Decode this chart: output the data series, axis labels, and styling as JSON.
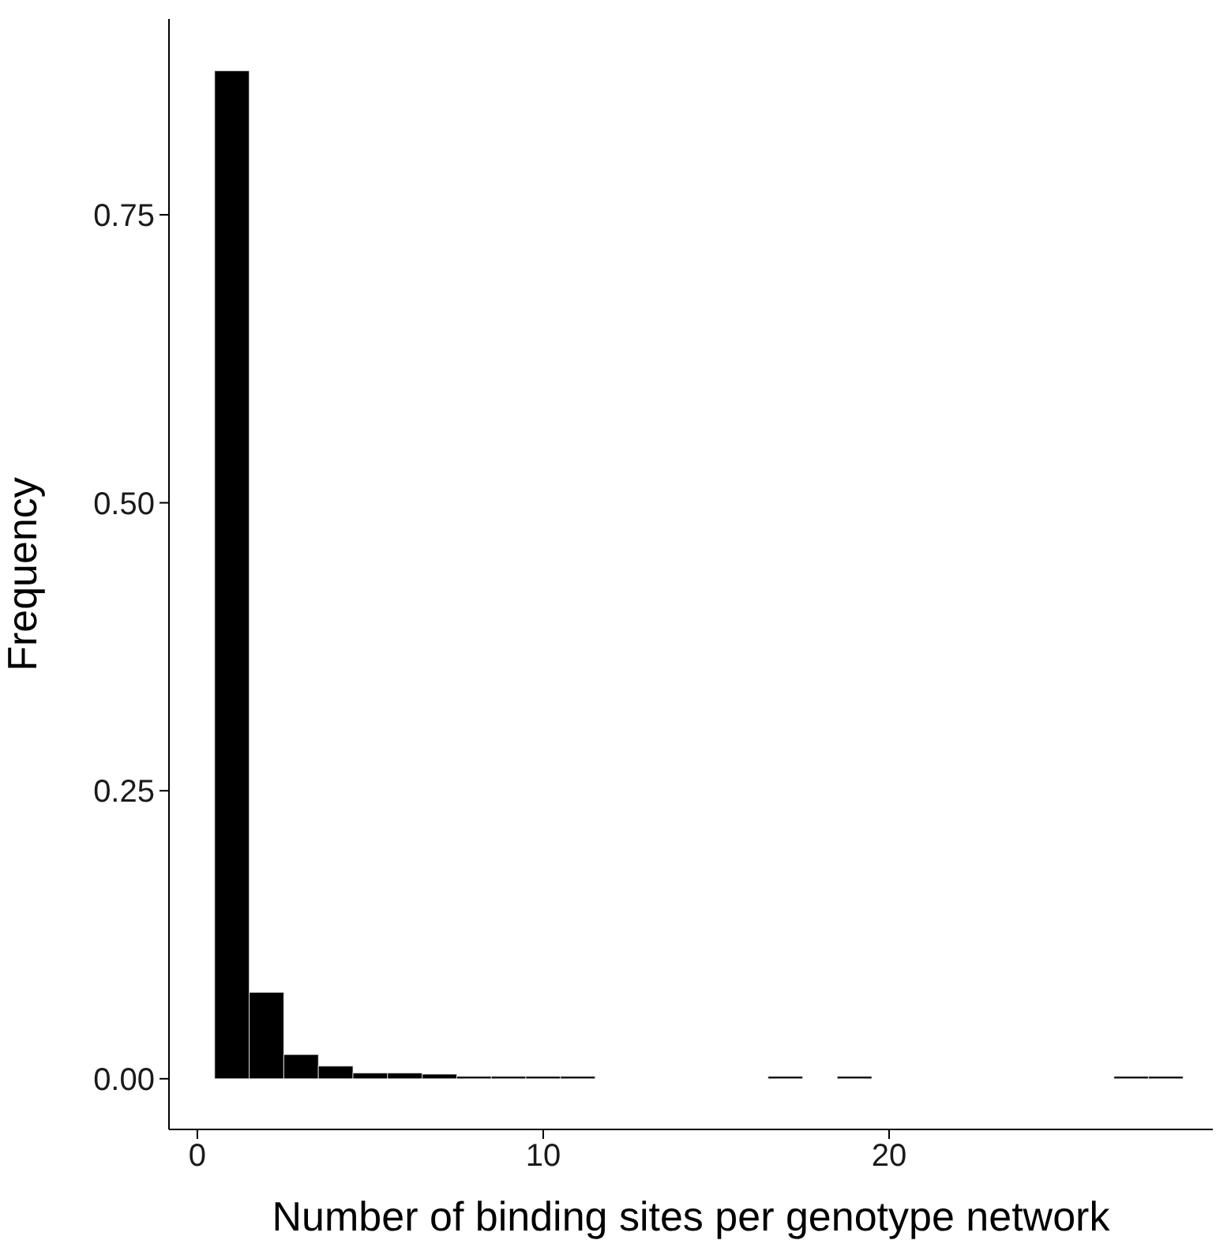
{
  "chart_data": {
    "type": "histogram",
    "xlabel": "Number of binding sites per genotype network",
    "ylabel": "Frequency",
    "bins": [
      0.5,
      1.5,
      2.5,
      3.5,
      4.5,
      5.5,
      6.5,
      7.5,
      8.5,
      9.5,
      10.5,
      11.5,
      12.5,
      13.5,
      14.5,
      15.5,
      16.5,
      17.5,
      18.5,
      19.5,
      20.5,
      21.5,
      22.5,
      23.5,
      24.5,
      25.5,
      26.5,
      27.5,
      28.5
    ],
    "values": [
      0.875,
      0.075,
      0.021,
      0.011,
      0.005,
      0.005,
      0.004,
      0.001,
      0.001,
      0.002,
      0.001,
      0,
      0,
      0,
      0,
      0,
      0.001,
      0,
      0.001,
      0,
      0,
      0,
      0,
      0,
      0,
      0,
      0.001,
      0.001
    ],
    "color": "#000000",
    "xlim": [
      -0.82,
      29.36
    ],
    "xticks": [
      0,
      10,
      20
    ],
    "ylim": [
      -0.044,
      0.92
    ],
    "yticks": [
      {
        "value": 0,
        "label": "0.00"
      },
      {
        "value": 0.25,
        "label": "0.25"
      },
      {
        "value": 0.5,
        "label": "0.50"
      },
      {
        "value": 0.75,
        "label": "0.75"
      }
    ],
    "grid": false,
    "legend": false
  }
}
